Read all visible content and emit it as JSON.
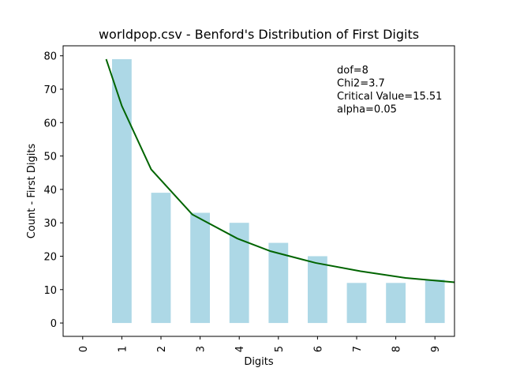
{
  "chart_data": {
    "type": "bar",
    "title": "worldpop.csv - Benford's Distribution of First Digits",
    "xlabel": "Digits",
    "ylabel": "Count - First Digits",
    "categories": [
      "0",
      "1",
      "2",
      "3",
      "4",
      "5",
      "6",
      "7",
      "8",
      "9"
    ],
    "values": [
      0,
      79,
      39,
      33,
      30,
      24,
      20,
      12,
      12,
      13
    ],
    "ylim": [
      -4,
      83
    ],
    "yticks": [
      "0",
      "10",
      "20",
      "30",
      "40",
      "50",
      "60",
      "70",
      "80"
    ],
    "grid": false,
    "bar_color": "#add8e6",
    "line_color": "#006400",
    "expected_line": {
      "x": [
        0.6,
        1.0,
        1.75,
        2.8,
        3.95,
        4.8,
        5.95,
        7.1,
        8.25,
        9.5
      ],
      "y": [
        79.0,
        65.0,
        46.0,
        32.5,
        25.3,
        21.5,
        18.0,
        15.5,
        13.5,
        12.2
      ]
    },
    "annotations": [
      "dof=8",
      "Chi2=3.7",
      "Critical Value=15.51",
      "alpha=0.05"
    ]
  }
}
